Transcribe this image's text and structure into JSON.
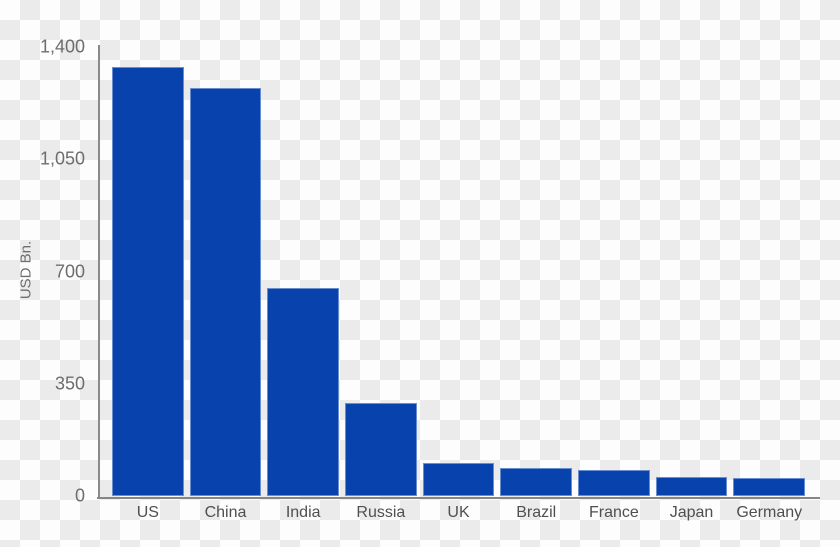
{
  "chart_data": {
    "type": "bar",
    "title": "",
    "xlabel": "",
    "ylabel": "USD Bn.",
    "categories": [
      "US",
      "China",
      "India",
      "Russia",
      "UK",
      "Brazil",
      "France",
      "Japan",
      "Germany"
    ],
    "values": [
      1337,
      1273,
      649,
      289,
      102,
      88,
      81,
      60,
      55
    ],
    "ylim": [
      0,
      1400
    ],
    "yticks": [
      1400,
      1050,
      700,
      350,
      0
    ],
    "ytick_labels": [
      "1,400",
      "1,050",
      "700",
      "350",
      "0"
    ],
    "grid": false,
    "legend": null,
    "bar_color": "#0842ac",
    "axis_color": "#8a8a8a",
    "ytick_color": "#6d6d6d",
    "xlabel_color": "#4f4f4f",
    "background": "transparent checkerboard",
    "checker_colors": [
      "#fdfdfd",
      "#ebebeb"
    ]
  }
}
